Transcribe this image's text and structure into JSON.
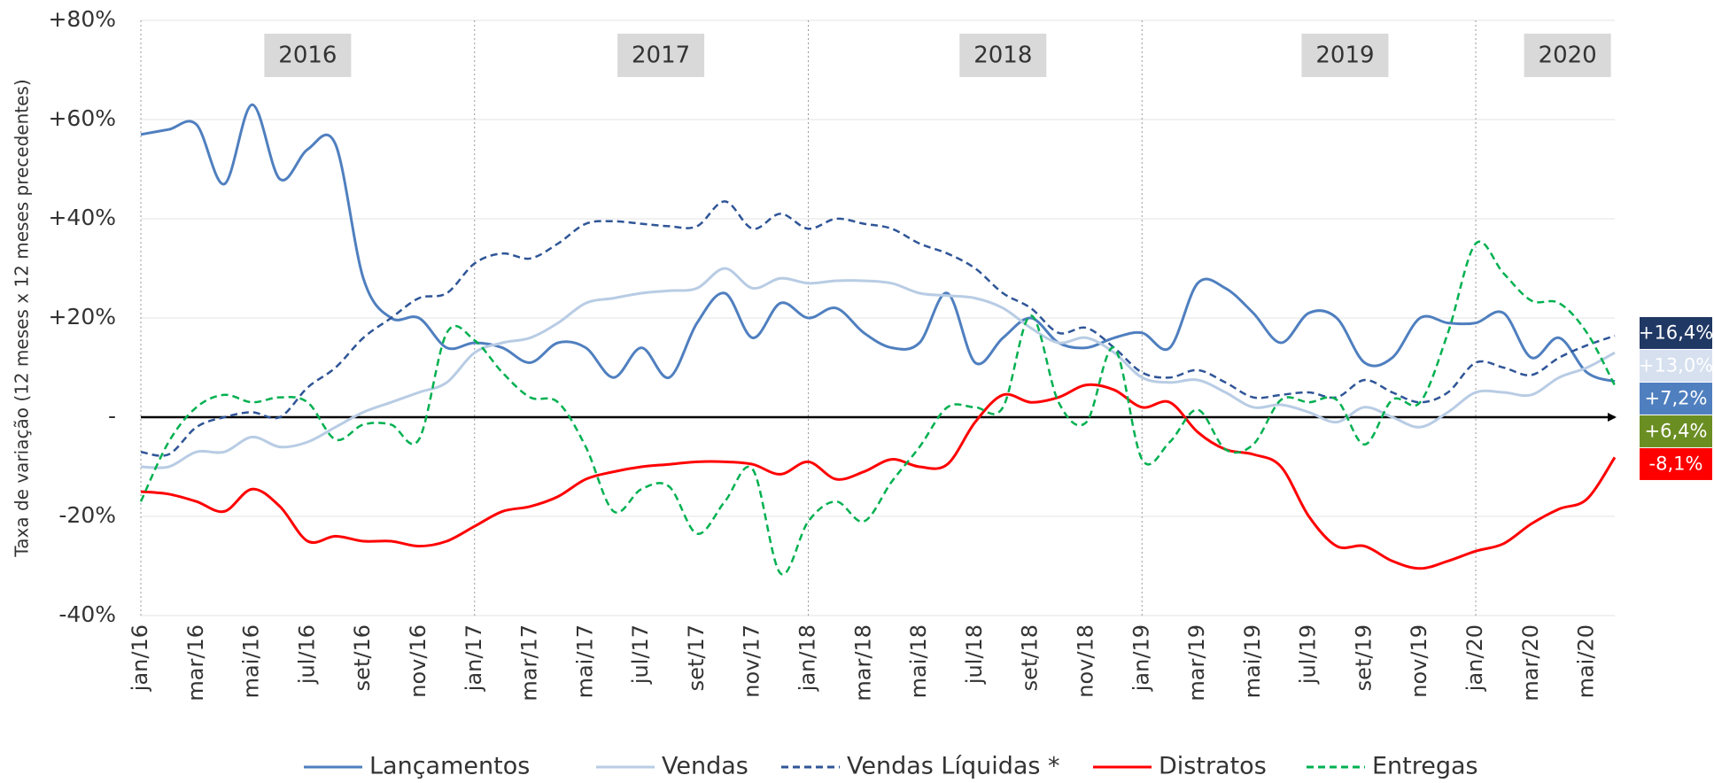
{
  "chart_data": {
    "type": "line",
    "y_label": "Taxa de variação (12 meses x 12 meses precedentes)",
    "annotations": [
      "2016",
      "2017",
      "2018",
      "2019",
      "2020"
    ],
    "categories": [
      "jan/16",
      null,
      "mar/16",
      null,
      "mai/16",
      null,
      "jul/16",
      null,
      "set/16",
      null,
      "nov/16",
      null,
      "jan/17",
      null,
      "mar/17",
      null,
      "mai/17",
      null,
      "jul/17",
      null,
      "set/17",
      null,
      "nov/17",
      null,
      "jan/18",
      null,
      "mar/18",
      null,
      "mai/18",
      null,
      "jul/18",
      null,
      "set/18",
      null,
      "nov/18",
      null,
      "jan/19",
      null,
      "mar/19",
      null,
      "mai/19",
      null,
      "jul/19",
      null,
      "set/19",
      null,
      "nov/19",
      null,
      "jan/20",
      null,
      "mar/20",
      null,
      "mai/20",
      null
    ],
    "ylim": [
      -40,
      80
    ],
    "yticks": [
      {
        "value": -40,
        "label": "-40%"
      },
      {
        "value": -20,
        "label": "-20%"
      },
      {
        "value": 0,
        "label": "-"
      },
      {
        "value": 20,
        "label": "+20%"
      },
      {
        "value": 40,
        "label": "+40%"
      },
      {
        "value": 60,
        "label": "+60%"
      },
      {
        "value": 80,
        "label": "+80%"
      }
    ],
    "grid": true,
    "legend": "bottom",
    "series": [
      {
        "name": "Lançamentos",
        "color": "#4f7fbf",
        "style": "solid",
        "label_color": "#4f7fbf",
        "values": [
          57,
          58,
          59,
          47,
          63,
          48,
          54,
          55,
          28,
          20,
          20,
          14,
          15,
          14,
          11,
          15,
          14,
          8,
          14,
          8,
          19,
          25,
          16,
          23,
          20,
          22,
          17,
          14,
          15,
          25,
          11,
          16,
          20,
          15,
          14,
          16,
          17,
          14,
          27,
          26,
          21,
          15,
          21,
          20,
          11,
          12,
          20,
          19,
          19,
          21,
          12,
          16,
          9,
          7.2
        ],
        "value_labels": [
          null,
          null,
          null,
          null,
          null,
          null,
          null,
          null,
          null,
          null,
          null,
          null,
          null,
          null,
          null,
          null,
          null,
          null,
          null,
          null,
          null,
          null,
          null,
          null,
          null,
          null,
          null,
          null,
          null,
          null,
          null,
          null,
          null,
          null,
          null,
          null,
          null,
          null,
          null,
          null,
          null,
          null,
          null,
          null,
          null,
          null,
          null,
          null,
          null,
          null,
          null,
          null,
          null,
          "+7,2%"
        ]
      },
      {
        "name": "Vendas",
        "color": "#b8cce4",
        "style": "solid",
        "label_color": "#d6e0ef",
        "values": [
          -10,
          -10,
          -7,
          -7,
          -4,
          -6,
          -5,
          -2,
          1,
          3,
          5,
          7,
          13,
          15,
          16,
          19,
          23,
          24,
          25,
          25.5,
          26,
          30,
          26,
          28,
          27,
          27.5,
          27.5,
          27,
          25,
          24.5,
          24,
          22,
          18,
          15,
          16,
          13,
          8,
          7,
          7.5,
          5,
          2,
          2.5,
          1,
          -1,
          2,
          0,
          -2,
          1,
          5,
          5,
          4.5,
          8,
          10,
          13.0
        ],
        "value_labels": [
          null,
          null,
          null,
          null,
          null,
          null,
          null,
          null,
          null,
          null,
          null,
          null,
          null,
          null,
          null,
          null,
          null,
          null,
          null,
          null,
          null,
          null,
          null,
          null,
          null,
          null,
          null,
          null,
          null,
          null,
          null,
          null,
          null,
          null,
          null,
          null,
          null,
          null,
          null,
          null,
          null,
          null,
          null,
          null,
          null,
          null,
          null,
          null,
          null,
          null,
          null,
          null,
          null,
          "+13,0%"
        ]
      },
      {
        "name": "Vendas Líquidas *",
        "color": "#2f5597",
        "style": "dashed",
        "label_color": "#203864",
        "values": [
          -7,
          -7.5,
          -2,
          0,
          1,
          0,
          6,
          10,
          16,
          20,
          24,
          25,
          31,
          33,
          32,
          35,
          39,
          39.5,
          39,
          38.5,
          38.5,
          43.5,
          38,
          41,
          38,
          40,
          39,
          38,
          35,
          33,
          30,
          25,
          22,
          17,
          18,
          14,
          9,
          8,
          9.5,
          7,
          4,
          4.5,
          5,
          4,
          7.5,
          5,
          3,
          5,
          11,
          10,
          8.5,
          12,
          14.5,
          16.4
        ],
        "value_labels": [
          null,
          null,
          null,
          null,
          null,
          null,
          null,
          null,
          null,
          null,
          null,
          null,
          null,
          null,
          null,
          null,
          null,
          null,
          null,
          null,
          null,
          null,
          null,
          null,
          null,
          null,
          null,
          null,
          null,
          null,
          null,
          null,
          null,
          null,
          null,
          null,
          null,
          null,
          null,
          null,
          null,
          null,
          null,
          null,
          null,
          null,
          null,
          null,
          null,
          null,
          null,
          null,
          null,
          "+16,4%"
        ]
      },
      {
        "name": "Distratos",
        "color": "#ff0000",
        "style": "solid",
        "label_color": "#ff0000",
        "values": [
          -15,
          -15.5,
          -17,
          -19,
          -14.5,
          -18,
          -25,
          -24,
          -25,
          -25,
          -26,
          -25,
          -22,
          -19,
          -18,
          -16,
          -12.5,
          -11,
          -10,
          -9.5,
          -9,
          -9,
          -9.5,
          -11.5,
          -9,
          -12.5,
          -11,
          -8.5,
          -10,
          -9.5,
          -1,
          4.5,
          3,
          4,
          6.5,
          5.5,
          2,
          3,
          -3,
          -6.5,
          -7.5,
          -10,
          -20,
          -26,
          -26,
          -29,
          -30.5,
          -29,
          -27,
          -25.5,
          -21.5,
          -18.5,
          -16.5,
          -8.1
        ],
        "value_labels": [
          null,
          null,
          null,
          null,
          null,
          null,
          null,
          null,
          null,
          null,
          null,
          null,
          null,
          null,
          null,
          null,
          null,
          null,
          null,
          null,
          null,
          null,
          null,
          null,
          null,
          null,
          null,
          null,
          null,
          null,
          null,
          null,
          null,
          null,
          null,
          null,
          null,
          null,
          null,
          null,
          null,
          null,
          null,
          null,
          null,
          null,
          null,
          null,
          null,
          null,
          null,
          null,
          null,
          "-8,1%"
        ]
      },
      {
        "name": "Entregas",
        "color": "#00b050",
        "style": "dashed",
        "label_color": "#6b8e23",
        "values": [
          -17,
          -5,
          2,
          4.5,
          3,
          4,
          3,
          -4.5,
          -1.5,
          -1.5,
          -4.5,
          17,
          15.5,
          9,
          4,
          3,
          -6,
          -19,
          -14.5,
          -14,
          -23.5,
          -17,
          -10.5,
          -31.5,
          -21,
          -17,
          -21,
          -13,
          -6,
          2,
          2,
          2,
          20.5,
          3,
          -1,
          14,
          -8.5,
          -5,
          1.5,
          -6.5,
          -5.5,
          3.5,
          3,
          3.5,
          -5.5,
          3.5,
          3,
          17,
          35,
          29,
          23.5,
          23,
          17,
          6.4
        ],
        "value_labels": [
          null,
          null,
          null,
          null,
          null,
          null,
          null,
          null,
          null,
          null,
          null,
          null,
          null,
          null,
          null,
          null,
          null,
          null,
          null,
          null,
          null,
          null,
          null,
          null,
          null,
          null,
          null,
          null,
          null,
          null,
          null,
          null,
          null,
          null,
          null,
          null,
          null,
          null,
          null,
          null,
          null,
          null,
          null,
          null,
          null,
          null,
          null,
          null,
          null,
          null,
          null,
          null,
          null,
          "+6,4%"
        ]
      }
    ]
  }
}
